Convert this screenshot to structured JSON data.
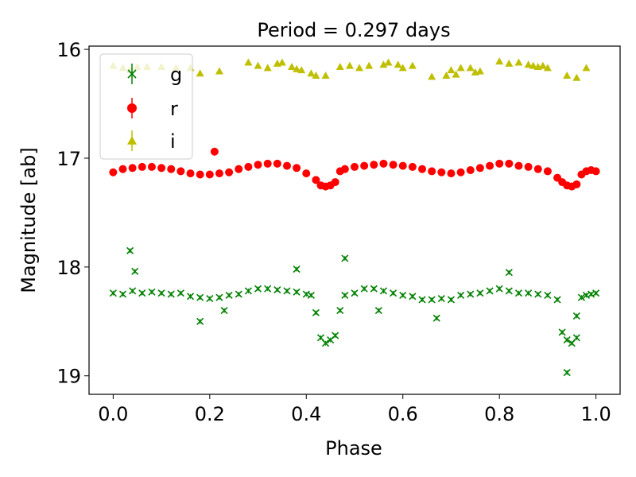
{
  "chart_data": {
    "type": "scatter",
    "title": "Period = 0.297 days",
    "xlabel": "Phase",
    "ylabel": "Magnitude [ab]",
    "xlim": [
      -0.05,
      1.05
    ],
    "ylim": [
      19.17,
      15.97
    ],
    "y_inverted": true,
    "x_ticks": [
      "0.0",
      "0.2",
      "0.4",
      "0.6",
      "0.8",
      "1.0"
    ],
    "y_ticks": [
      "16",
      "17",
      "18",
      "19"
    ],
    "grid": false,
    "legend_position": "top-left",
    "series": [
      {
        "name": "g",
        "color": "#008000",
        "marker": "x",
        "x": [
          0.0,
          0.02,
          0.04,
          0.06,
          0.08,
          0.1,
          0.12,
          0.14,
          0.16,
          0.18,
          0.2,
          0.22,
          0.24,
          0.26,
          0.28,
          0.3,
          0.32,
          0.34,
          0.36,
          0.38,
          0.4,
          0.41,
          0.42,
          0.43,
          0.44,
          0.45,
          0.46,
          0.47,
          0.48,
          0.5,
          0.52,
          0.54,
          0.56,
          0.58,
          0.6,
          0.62,
          0.64,
          0.66,
          0.68,
          0.7,
          0.72,
          0.74,
          0.76,
          0.78,
          0.8,
          0.82,
          0.84,
          0.86,
          0.88,
          0.9,
          0.92,
          0.93,
          0.94,
          0.95,
          0.96,
          0.97,
          0.98,
          0.99,
          1.0,
          0.035,
          0.045,
          0.18,
          0.23,
          0.48,
          0.38,
          0.94,
          0.96,
          0.67,
          0.55,
          0.82
        ],
        "y": [
          18.24,
          18.25,
          18.22,
          18.24,
          18.23,
          18.24,
          18.25,
          18.24,
          18.27,
          18.28,
          18.29,
          18.28,
          18.26,
          18.25,
          18.22,
          18.2,
          18.2,
          18.21,
          18.22,
          18.23,
          18.25,
          18.26,
          18.42,
          18.65,
          18.7,
          18.67,
          18.63,
          18.4,
          18.26,
          18.24,
          18.2,
          18.2,
          18.22,
          18.24,
          18.26,
          18.27,
          18.3,
          18.3,
          18.29,
          18.3,
          18.26,
          18.25,
          18.24,
          18.22,
          18.2,
          18.22,
          18.24,
          18.24,
          18.25,
          18.26,
          18.3,
          18.6,
          18.67,
          18.7,
          18.65,
          18.28,
          18.26,
          18.25,
          18.24,
          17.85,
          18.04,
          18.5,
          18.4,
          17.92,
          18.02,
          18.97,
          18.45,
          18.47,
          18.4,
          18.05
        ]
      },
      {
        "name": "r",
        "color": "#ff0000",
        "marker": "o",
        "x": [
          0.0,
          0.02,
          0.04,
          0.06,
          0.08,
          0.1,
          0.12,
          0.14,
          0.16,
          0.18,
          0.2,
          0.21,
          0.22,
          0.24,
          0.26,
          0.28,
          0.3,
          0.32,
          0.34,
          0.36,
          0.38,
          0.4,
          0.42,
          0.43,
          0.44,
          0.45,
          0.46,
          0.47,
          0.48,
          0.5,
          0.52,
          0.54,
          0.56,
          0.58,
          0.6,
          0.62,
          0.64,
          0.66,
          0.68,
          0.7,
          0.72,
          0.74,
          0.76,
          0.78,
          0.8,
          0.82,
          0.84,
          0.86,
          0.88,
          0.9,
          0.92,
          0.93,
          0.94,
          0.95,
          0.96,
          0.97,
          0.98,
          0.99,
          1.0
        ],
        "y": [
          17.13,
          17.1,
          17.09,
          17.08,
          17.08,
          17.09,
          17.1,
          17.12,
          17.14,
          17.15,
          17.15,
          16.94,
          17.14,
          17.13,
          17.1,
          17.08,
          17.06,
          17.05,
          17.05,
          17.07,
          17.09,
          17.14,
          17.2,
          17.25,
          17.26,
          17.25,
          17.22,
          17.12,
          17.1,
          17.08,
          17.07,
          17.06,
          17.05,
          17.06,
          17.07,
          17.08,
          17.1,
          17.12,
          17.13,
          17.14,
          17.13,
          17.11,
          17.09,
          17.07,
          17.05,
          17.05,
          17.07,
          17.08,
          17.1,
          17.12,
          17.18,
          17.22,
          17.25,
          17.26,
          17.24,
          17.15,
          17.12,
          17.11,
          17.12
        ]
      },
      {
        "name": "i",
        "color": "#bfbf00",
        "marker": "^",
        "x": [
          0.0,
          0.02,
          0.035,
          0.05,
          0.07,
          0.1,
          0.13,
          0.16,
          0.18,
          0.22,
          0.28,
          0.3,
          0.32,
          0.34,
          0.35,
          0.37,
          0.38,
          0.39,
          0.41,
          0.42,
          0.44,
          0.47,
          0.49,
          0.51,
          0.53,
          0.56,
          0.57,
          0.59,
          0.6,
          0.62,
          0.66,
          0.69,
          0.7,
          0.71,
          0.72,
          0.74,
          0.75,
          0.76,
          0.8,
          0.82,
          0.84,
          0.86,
          0.87,
          0.88,
          0.89,
          0.9,
          0.94,
          0.96,
          0.98
        ],
        "y": [
          16.15,
          16.17,
          16.19,
          16.16,
          16.16,
          16.16,
          16.17,
          16.17,
          16.22,
          16.2,
          16.12,
          16.15,
          16.17,
          16.13,
          16.12,
          16.16,
          16.18,
          16.19,
          16.22,
          16.24,
          16.24,
          16.16,
          16.15,
          16.17,
          16.15,
          16.14,
          16.12,
          16.14,
          16.17,
          16.15,
          16.25,
          16.24,
          16.19,
          16.23,
          16.17,
          16.17,
          16.21,
          16.2,
          16.11,
          16.13,
          16.12,
          16.14,
          16.15,
          16.16,
          16.15,
          16.17,
          16.24,
          16.26,
          16.17
        ]
      }
    ]
  }
}
